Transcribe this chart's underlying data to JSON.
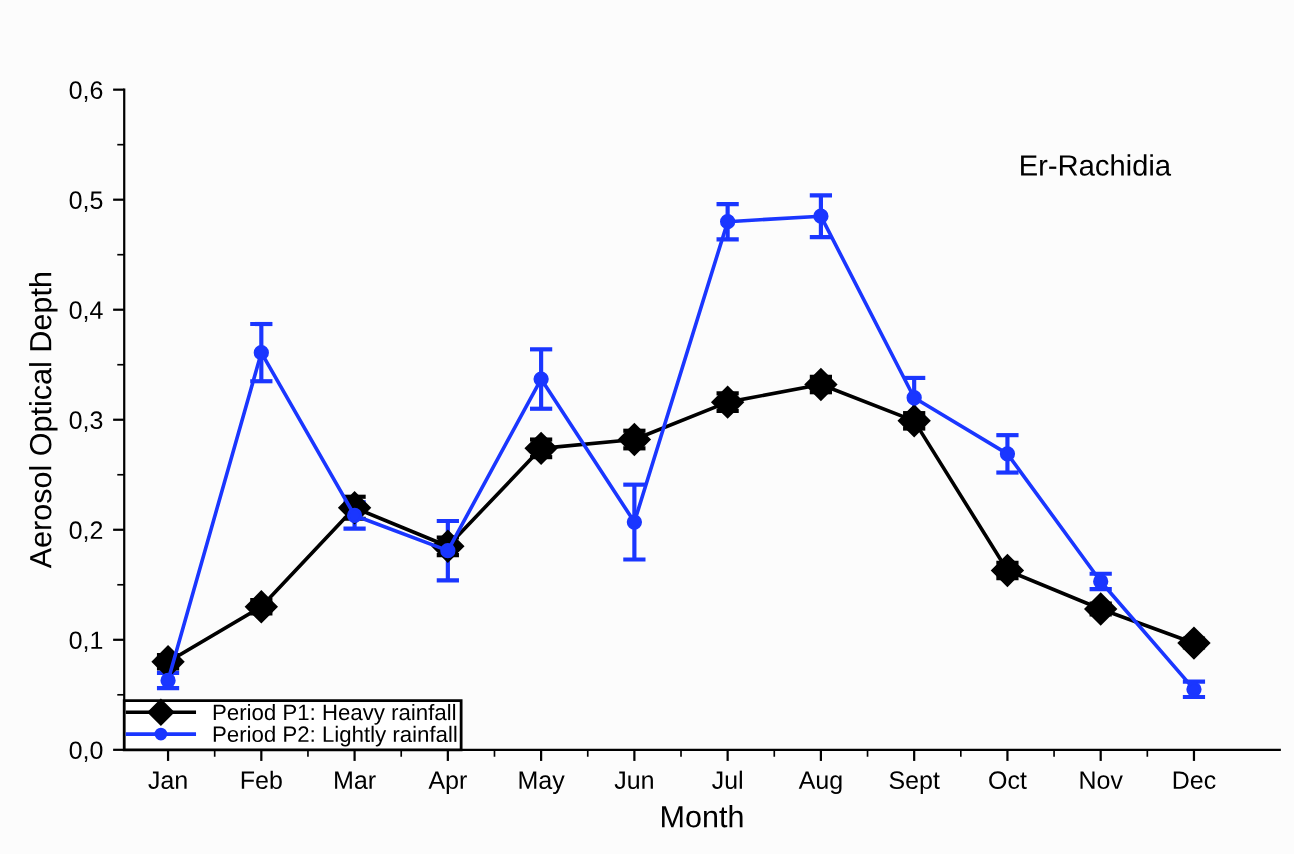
{
  "chart_data": {
    "type": "line",
    "xlabel": "Month",
    "ylabel": "Aerosol Optical Depth",
    "categories": [
      "Jan",
      "Feb",
      "Mar",
      "Apr",
      "May",
      "Jun",
      "Jul",
      "Aug",
      "Sept",
      "Oct",
      "Nov",
      "Dec"
    ],
    "series": [
      {
        "name": "Period P1: Heavy rainfall",
        "color": "#000000",
        "marker": "diamond",
        "values": [
          0.08,
          0.13,
          0.22,
          0.185,
          0.274,
          0.282,
          0.316,
          0.332,
          0.299,
          0.163,
          0.128,
          0.097
        ],
        "errors": [
          0.006,
          0.006,
          0.01,
          0.008,
          0.008,
          0.008,
          0.008,
          0.007,
          0.007,
          0.007,
          0.005,
          0.004
        ]
      },
      {
        "name": "Period P2: Lightly rainfall",
        "color": "#1a36ff",
        "marker": "circle",
        "values": [
          0.063,
          0.361,
          0.213,
          0.181,
          0.337,
          0.207,
          0.48,
          0.485,
          0.32,
          0.269,
          0.153,
          0.055
        ],
        "errors": [
          0.007,
          0.026,
          0.012,
          0.027,
          0.027,
          0.034,
          0.016,
          0.019,
          0.018,
          0.017,
          0.007,
          0.007
        ]
      }
    ],
    "ylim": [
      0,
      0.6
    ],
    "yticks": [
      {
        "value": 0,
        "label": "0,0"
      },
      {
        "value": 0.1,
        "label": "0,1"
      },
      {
        "value": 0.2,
        "label": "0,2"
      },
      {
        "value": 0.3,
        "label": "0,3"
      },
      {
        "value": 0.4,
        "label": "0,4"
      },
      {
        "value": 0.5,
        "label": "0,5"
      },
      {
        "value": 0.6,
        "label": "0,6"
      }
    ],
    "annotations": [
      "Er-Rachidia"
    ],
    "legend": "bottom left",
    "grid": false,
    "line_style": "solid"
  }
}
